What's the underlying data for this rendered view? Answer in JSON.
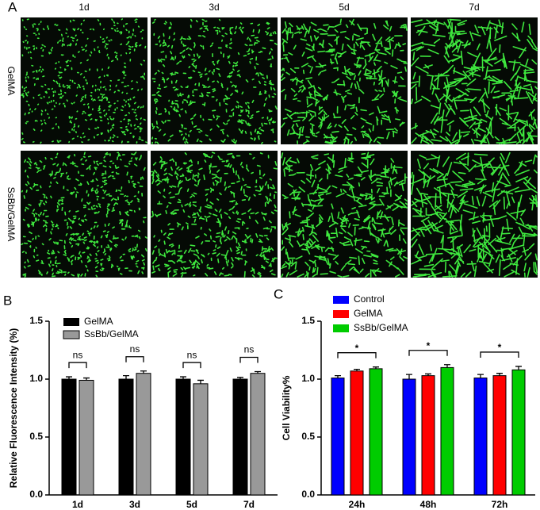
{
  "panel_labels": [
    "A",
    "B",
    "C"
  ],
  "image_grid": {
    "columns": [
      "1d",
      "3d",
      "5d",
      "7d"
    ],
    "rows": [
      "GelMA",
      "SsBb/GelMA"
    ]
  },
  "chart_data": [
    {
      "type": "bar",
      "y_label": "Relative Fluorescence Intensity (%)",
      "categories": [
        "1d",
        "3d",
        "5d",
        "7d"
      ],
      "series": [
        {
          "name": "GelMA",
          "color": "#000000",
          "values": [
            1.0,
            1.0,
            1.0,
            1.0
          ],
          "errors": [
            0.02,
            0.03,
            0.02,
            0.015
          ]
        },
        {
          "name": "SsBb/GelMA",
          "color": "#999999",
          "values": [
            0.99,
            1.05,
            0.96,
            1.05
          ],
          "errors": [
            0.02,
            0.02,
            0.03,
            0.015
          ]
        }
      ],
      "significance": [
        "ns",
        "ns",
        "ns",
        "ns"
      ],
      "ylim": [
        0,
        1.5
      ],
      "yticks": [
        {
          "value": 0,
          "label": "0.0"
        },
        0.5,
        {
          "value": 1,
          "label": "1.0"
        },
        1.5
      ],
      "legend": "top-left"
    },
    {
      "type": "bar",
      "y_label": "Cell Viability%",
      "categories": [
        "24h",
        "48h",
        "72h"
      ],
      "series": [
        {
          "name": "Control",
          "color": "#0000ff",
          "values": [
            1.01,
            1.0,
            1.01
          ],
          "errors": [
            0.02,
            0.04,
            0.03
          ]
        },
        {
          "name": "GelMA",
          "color": "#ff0000",
          "values": [
            1.07,
            1.03,
            1.03
          ],
          "errors": [
            0.015,
            0.015,
            0.02
          ]
        },
        {
          "name": "SsBb/GelMA",
          "color": "#00cc00",
          "values": [
            1.09,
            1.1,
            1.08
          ],
          "errors": [
            0.015,
            0.025,
            0.03
          ]
        }
      ],
      "significance": [
        "*",
        "*",
        "*"
      ],
      "ylim": [
        0,
        1.5
      ],
      "yticks": [
        {
          "value": 0,
          "label": "0.0"
        },
        0.5,
        {
          "value": 1,
          "label": "1.0"
        },
        1.5
      ],
      "legend": "top-left"
    }
  ]
}
